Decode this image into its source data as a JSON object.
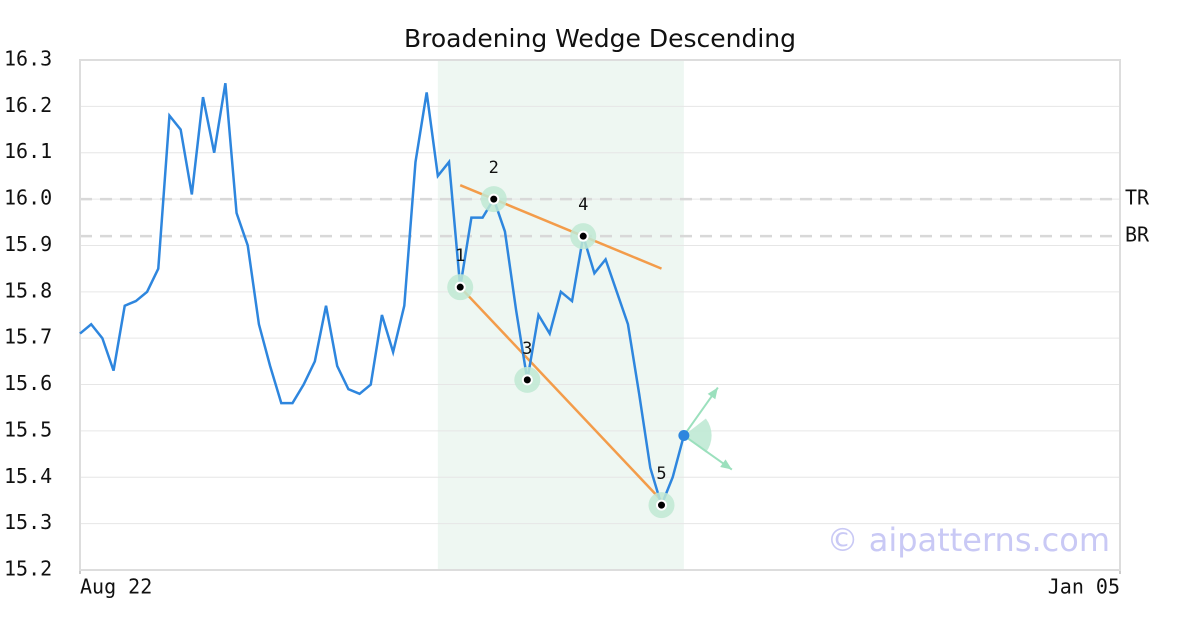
{
  "chart_data": {
    "type": "line",
    "title": "Broadening Wedge Descending",
    "x": [
      0,
      1,
      2,
      3,
      4,
      5,
      6,
      7,
      8,
      9,
      10,
      11,
      12,
      13,
      14,
      15,
      16,
      17,
      18,
      19,
      20,
      21,
      22,
      23,
      24,
      25,
      26,
      27,
      28,
      29,
      30,
      31,
      32,
      33,
      34,
      35,
      36,
      37,
      38,
      39,
      40,
      41,
      42,
      43,
      44,
      45,
      46,
      47,
      48,
      49,
      50,
      51,
      52,
      53,
      54
    ],
    "series": [
      {
        "color": "#2e86de",
        "values": [
          15.71,
          15.73,
          15.7,
          15.63,
          15.77,
          15.78,
          15.8,
          15.85,
          16.18,
          16.15,
          16.01,
          16.22,
          16.1,
          16.25,
          15.97,
          15.9,
          15.73,
          15.64,
          15.56,
          15.56,
          15.6,
          15.65,
          15.77,
          15.64,
          15.59,
          15.58,
          15.6,
          15.75,
          15.67,
          15.77,
          16.08,
          16.23,
          16.05,
          16.08,
          15.81,
          15.96,
          15.96,
          16.0,
          15.93,
          15.76,
          15.61,
          15.75,
          15.71,
          15.8,
          15.78,
          15.92,
          15.84,
          15.87,
          15.8,
          15.73,
          15.58,
          15.42,
          15.34,
          15.4,
          15.49
        ]
      }
    ],
    "xlim": [
      0,
      93
    ],
    "xticks": [
      {
        "value": 0,
        "label": "Aug 22"
      },
      {
        "value": 93,
        "label": "Jan 05"
      }
    ],
    "ylim": [
      15.2,
      16.3
    ],
    "yticks": [
      15.2,
      15.3,
      15.4,
      15.5,
      15.6,
      15.7,
      15.8,
      15.9,
      {
        "value": 16,
        "label": "16.0"
      },
      16.1,
      16.2,
      16.3
    ],
    "grid": true,
    "shaded_range": [
      32,
      54
    ],
    "pattern_points": [
      {
        "label": "1",
        "x": 34,
        "value": 15.81
      },
      {
        "label": "2",
        "x": 37,
        "value": 16.0
      },
      {
        "label": "3",
        "x": 40,
        "value": 15.61
      },
      {
        "label": "4",
        "x": 45,
        "value": 15.92
      },
      {
        "label": "5",
        "x": 52,
        "value": 15.34
      }
    ],
    "trend_lines": [
      {
        "x": [
          34,
          52
        ],
        "values": [
          16.03,
          15.85
        ],
        "color": "#f39c4a"
      },
      {
        "x": [
          34,
          52
        ],
        "values": [
          15.81,
          15.35
        ],
        "color": "#f39c4a"
      }
    ],
    "levels": [
      {
        "label": "TR",
        "value": 16.0
      },
      {
        "label": "BR",
        "value": 15.92
      }
    ],
    "watermark": "© aipatterns.com"
  }
}
